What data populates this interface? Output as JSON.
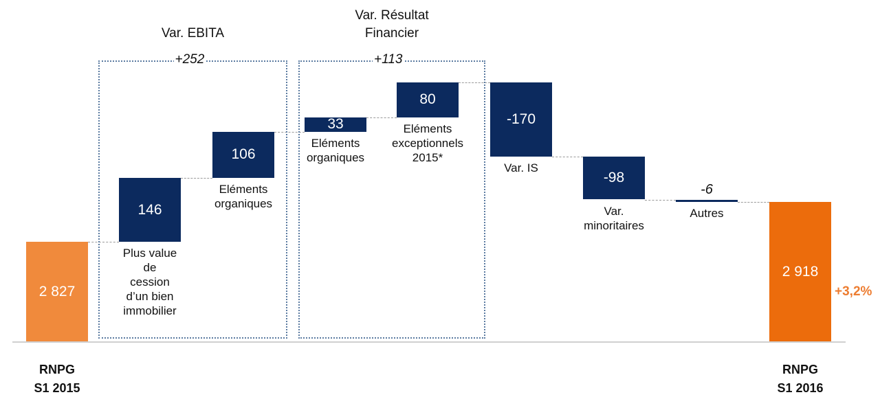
{
  "chart_data": {
    "type": "waterfall",
    "categories": [
      [
        "RNPG",
        "S1 2015"
      ],
      [
        "Plus value",
        "de",
        "cession",
        "d’un bien",
        "immobilier"
      ],
      [
        "Eléments",
        "organiques"
      ],
      [
        "Eléments",
        "organiques"
      ],
      [
        "Eléments",
        "exceptionnels",
        "2015*"
      ],
      [
        "Var. IS"
      ],
      [
        "Var.",
        "minoritaires"
      ],
      [
        "Autres"
      ],
      [
        "RNPG",
        "S1 2016"
      ]
    ],
    "values": [
      2827,
      146,
      106,
      33,
      80,
      -170,
      -98,
      -6,
      2918
    ],
    "value_labels": [
      "2 827",
      "146",
      "106",
      "33",
      "80",
      "-170",
      "-98",
      "-6",
      "2 918"
    ],
    "colors": [
      "#f08a3c",
      "#0c2a5e",
      "#0c2a5e",
      "#0c2a5e",
      "#0c2a5e",
      "#0c2a5e",
      "#0c2a5e",
      "#0c2a5e",
      "#ec6c0c"
    ],
    "ylim": [
      2600,
      3350
    ],
    "groups": [
      {
        "title": [
          "Var. EBITA"
        ],
        "value": 252,
        "label": "+252"
      },
      {
        "title": [
          "Var. Résultat",
          "Financier"
        ],
        "value": 113,
        "label": "+113"
      }
    ],
    "annotation": "+3,2%"
  }
}
